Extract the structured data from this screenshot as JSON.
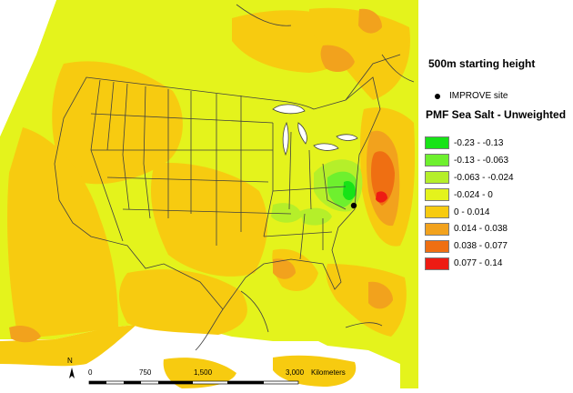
{
  "map": {
    "north_label": "N",
    "scale_labels": [
      "0",
      "750",
      "1,500",
      "3,000"
    ],
    "scale_unit": "Kilometers"
  },
  "panel": {
    "title": "500m starting height",
    "site_label": "IMPROVE site",
    "legend_title": "PMF Sea Salt - Unweighted",
    "legend": [
      {
        "label": "-0.23 - -0.13",
        "color": "#17e317"
      },
      {
        "label": "-0.13 - -0.063",
        "color": "#6ef02e"
      },
      {
        "label": "-0.063 - -0.024",
        "color": "#b5ef2a"
      },
      {
        "label": "-0.024 - 0",
        "color": "#e4f31c"
      },
      {
        "label": "0 - 0.014",
        "color": "#f7cb10"
      },
      {
        "label": "0.014 - 0.038",
        "color": "#f2a21d"
      },
      {
        "label": "0.038 - 0.077",
        "color": "#ef6f12"
      },
      {
        "label": "0.077 - 0.14",
        "color": "#ee1b13"
      }
    ]
  }
}
